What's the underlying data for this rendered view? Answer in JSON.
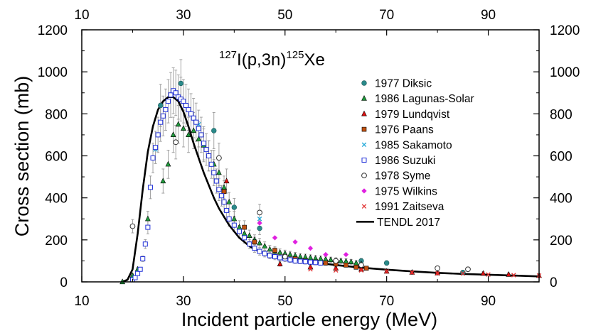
{
  "chart_data": {
    "type": "scatter",
    "title_parts": {
      "target_mass": "127",
      "reaction": "I(p,3n)",
      "product_mass": "125",
      "product": "Xe"
    },
    "xlabel": "Incident particle energy (MeV)",
    "ylabel": "Cross section (mb)",
    "xlim": [
      10,
      100
    ],
    "ylim": [
      0,
      1200
    ],
    "x_ticks": [
      10,
      30,
      50,
      70,
      90
    ],
    "y_ticks": [
      0,
      200,
      400,
      600,
      800,
      1000,
      1200
    ],
    "bottom_tick_labels": [
      "10",
      "30",
      "50",
      "70",
      "90"
    ],
    "top_tick_labels": [
      "10",
      "30",
      "50",
      "70",
      "90"
    ],
    "left_tick_labels": [
      "0",
      "200",
      "400",
      "600",
      "800",
      "1000",
      "1200"
    ],
    "right_tick_labels": [
      "0",
      "200",
      "400",
      "600",
      "800",
      "1000",
      "1200"
    ],
    "legend_position": "right",
    "series": [
      {
        "name": "1977 Diksic",
        "marker": "circle",
        "color": "#2a8a8a",
        "filled": true,
        "points": [
          [
            25.5,
            840
          ],
          [
            29.5,
            945
          ],
          [
            36.0,
            720
          ],
          [
            40.0,
            355
          ],
          [
            45.0,
            255
          ],
          [
            55.0,
            100
          ],
          [
            60.0,
            95
          ],
          [
            65.0,
            100
          ],
          [
            70.0,
            90
          ],
          [
            85.0,
            45
          ]
        ]
      },
      {
        "name": "1986 Lagunas-Solar",
        "marker": "triangle",
        "color": "#1f9a3c",
        "filled": true,
        "points": [
          [
            18.0,
            0
          ],
          [
            20.0,
            30
          ],
          [
            21.0,
            60
          ],
          [
            23.0,
            300
          ],
          [
            26.0,
            480
          ],
          [
            27.0,
            560
          ],
          [
            28.0,
            700
          ],
          [
            29.0,
            750
          ],
          [
            30.0,
            730
          ],
          [
            31.0,
            700
          ],
          [
            32.0,
            720
          ],
          [
            33.0,
            680
          ],
          [
            34.0,
            650
          ],
          [
            35.0,
            600
          ],
          [
            36.0,
            560
          ],
          [
            37.0,
            520
          ],
          [
            38.0,
            450
          ],
          [
            39.0,
            380
          ],
          [
            40.0,
            300
          ],
          [
            41.0,
            260
          ],
          [
            42.0,
            230
          ],
          [
            43.0,
            220
          ],
          [
            44.0,
            200
          ],
          [
            45.0,
            185
          ],
          [
            46.0,
            170
          ],
          [
            47.0,
            155
          ],
          [
            48.0,
            145
          ],
          [
            49.0,
            140
          ],
          [
            50.0,
            135
          ],
          [
            51.0,
            130
          ],
          [
            52.0,
            125
          ],
          [
            53.0,
            120
          ],
          [
            54.0,
            118
          ],
          [
            55.0,
            115
          ],
          [
            56.0,
            112
          ],
          [
            57.0,
            110
          ],
          [
            58.0,
            108
          ],
          [
            59.0,
            105
          ],
          [
            60.0,
            102
          ],
          [
            61.0,
            100
          ],
          [
            62.0,
            98
          ],
          [
            63.0,
            95
          ],
          [
            64.0,
            90
          ],
          [
            65.0,
            85
          ]
        ]
      },
      {
        "name": "1979 Lundqvist",
        "marker": "triangle",
        "color": "#e01010",
        "filled": true,
        "points": [
          [
            38.5,
            480
          ],
          [
            49.0,
            85
          ],
          [
            55.0,
            70
          ],
          [
            60.0,
            65
          ],
          [
            65.0,
            60
          ],
          [
            70.0,
            50
          ],
          [
            75.0,
            45
          ],
          [
            80.0,
            42
          ],
          [
            89.0,
            40
          ],
          [
            94.0,
            35
          ],
          [
            100.0,
            30
          ]
        ]
      },
      {
        "name": "1976 Paans",
        "marker": "square",
        "color": "#c05010",
        "filled": true,
        "points": [
          [
            38.0,
            430
          ],
          [
            42.0,
            260
          ],
          [
            44.0,
            190
          ],
          [
            48.0,
            150
          ],
          [
            50.0,
            120
          ],
          [
            52.0,
            110
          ],
          [
            54.0,
            100
          ],
          [
            56.0,
            95
          ],
          [
            58.0,
            90
          ],
          [
            60.0,
            85
          ],
          [
            62.0,
            80
          ],
          [
            64.0,
            70
          ],
          [
            66.0,
            65
          ]
        ]
      },
      {
        "name": "1985 Sakamoto",
        "marker": "x",
        "color": "#20a8d8",
        "filled": false,
        "points": [
          [
            24.5,
            630
          ],
          [
            33.0,
            750
          ],
          [
            45.0,
            300
          ]
        ]
      },
      {
        "name": "1986 Suzuki",
        "marker": "square",
        "color": "#2030d8",
        "filled": false,
        "points": [
          [
            20.0,
            10
          ],
          [
            20.5,
            20
          ],
          [
            21.0,
            40
          ],
          [
            21.5,
            60
          ],
          [
            22.0,
            110
          ],
          [
            22.5,
            180
          ],
          [
            23.0,
            260
          ],
          [
            23.5,
            450
          ],
          [
            24.0,
            590
          ],
          [
            24.5,
            640
          ],
          [
            25.0,
            700
          ],
          [
            25.5,
            760
          ],
          [
            26.0,
            790
          ],
          [
            26.5,
            820
          ],
          [
            27.0,
            860
          ],
          [
            27.5,
            890
          ],
          [
            28.0,
            910
          ],
          [
            28.5,
            900
          ],
          [
            29.0,
            880
          ],
          [
            29.5,
            870
          ],
          [
            30.0,
            860
          ],
          [
            30.5,
            840
          ],
          [
            31.0,
            820
          ],
          [
            31.5,
            800
          ],
          [
            32.0,
            780
          ],
          [
            32.5,
            760
          ],
          [
            33.0,
            730
          ],
          [
            33.5,
            700
          ],
          [
            34.0,
            660
          ],
          [
            34.5,
            630
          ],
          [
            35.0,
            600
          ],
          [
            35.5,
            560
          ],
          [
            36.0,
            520
          ],
          [
            36.5,
            480
          ],
          [
            37.0,
            440
          ],
          [
            37.5,
            410
          ],
          [
            38.0,
            380
          ],
          [
            38.5,
            340
          ],
          [
            39.0,
            300
          ],
          [
            40.0,
            270
          ],
          [
            41.0,
            240
          ],
          [
            42.0,
            210
          ],
          [
            43.0,
            180
          ],
          [
            44.0,
            160
          ],
          [
            45.0,
            145
          ],
          [
            46.0,
            135
          ],
          [
            47.0,
            125
          ],
          [
            48.0,
            120
          ],
          [
            49.0,
            115
          ],
          [
            50.0,
            110
          ],
          [
            51.0,
            105
          ],
          [
            52.0,
            100
          ],
          [
            53.0,
            98
          ],
          [
            54.0,
            96
          ],
          [
            55.0,
            94
          ],
          [
            56.0,
            92
          ],
          [
            57.0,
            90
          ]
        ]
      },
      {
        "name": "1978 Syme",
        "marker": "circle",
        "color": "#333333",
        "filled": false,
        "points": [
          [
            20.0,
            265
          ],
          [
            28.5,
            665
          ],
          [
            37.0,
            590
          ],
          [
            45.0,
            330
          ],
          [
            50.0,
            120
          ],
          [
            60.0,
            100
          ],
          [
            65.0,
            80
          ],
          [
            80.0,
            65
          ],
          [
            86.0,
            60
          ]
        ]
      },
      {
        "name": "1975 Wilkins",
        "marker": "diamond",
        "color": "#e020e0",
        "filled": true,
        "points": [
          [
            45.0,
            280
          ],
          [
            48.0,
            210
          ],
          [
            52.0,
            190
          ],
          [
            55.0,
            160
          ],
          [
            58.0,
            130
          ],
          [
            62.0,
            130
          ]
        ]
      },
      {
        "name": "1991 Zaitseva",
        "marker": "x",
        "color": "#e03030",
        "filled": false,
        "points": [
          [
            55.0,
            60
          ],
          [
            60.0,
            55
          ],
          [
            65.0,
            55
          ],
          [
            70.0,
            50
          ],
          [
            75.0,
            45
          ],
          [
            80.0,
            40
          ],
          [
            85.0,
            40
          ],
          [
            90.0,
            35
          ],
          [
            95.0,
            32
          ],
          [
            100.0,
            30
          ]
        ]
      },
      {
        "name": "TENDL 2017",
        "marker": "line",
        "color": "#000000",
        "filled": false,
        "points": [
          [
            18.0,
            0
          ],
          [
            19.0,
            10
          ],
          [
            20.0,
            60
          ],
          [
            21.0,
            230
          ],
          [
            22.0,
            440
          ],
          [
            23.0,
            620
          ],
          [
            24.0,
            740
          ],
          [
            25.0,
            820
          ],
          [
            26.0,
            860
          ],
          [
            27.0,
            880
          ],
          [
            28.0,
            880
          ],
          [
            29.0,
            860
          ],
          [
            30.0,
            810
          ],
          [
            31.0,
            740
          ],
          [
            32.0,
            660
          ],
          [
            33.0,
            590
          ],
          [
            34.0,
            520
          ],
          [
            35.0,
            460
          ],
          [
            36.0,
            400
          ],
          [
            37.0,
            350
          ],
          [
            38.0,
            310
          ],
          [
            39.0,
            270
          ],
          [
            40.0,
            240
          ],
          [
            41.0,
            210
          ],
          [
            42.0,
            190
          ],
          [
            43.0,
            170
          ],
          [
            44.0,
            155
          ],
          [
            45.0,
            145
          ],
          [
            47.0,
            130
          ],
          [
            50.0,
            115
          ],
          [
            55.0,
            95
          ],
          [
            60.0,
            80
          ],
          [
            65.0,
            68
          ],
          [
            70.0,
            58
          ],
          [
            75.0,
            50
          ],
          [
            80.0,
            43
          ],
          [
            85.0,
            38
          ],
          [
            90.0,
            34
          ],
          [
            95.0,
            30
          ],
          [
            100.0,
            26
          ]
        ]
      }
    ]
  }
}
